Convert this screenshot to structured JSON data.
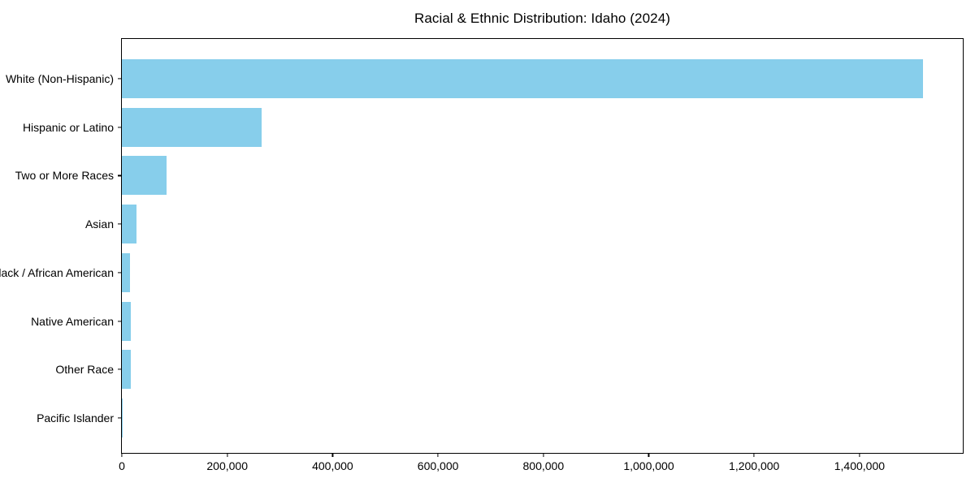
{
  "chart_data": {
    "type": "bar",
    "orientation": "horizontal",
    "title": "Racial & Ethnic Distribution: Idaho (2024)",
    "categories": [
      "White (Non-Hispanic)",
      "Hispanic or Latino",
      "Two or More Races",
      "Asian",
      "Black / African American",
      "Native American",
      "Other Race",
      "Pacific Islander"
    ],
    "values": [
      1520000,
      265000,
      85000,
      28000,
      16000,
      17000,
      17000,
      2000
    ],
    "bar_color": "#87CEEB",
    "xlabel": "",
    "ylabel": "",
    "xlim": [
      0,
      1596000
    ],
    "x_ticks": [
      0,
      200000,
      400000,
      600000,
      800000,
      1000000,
      1200000,
      1400000
    ],
    "x_tick_labels": [
      "0",
      "200,000",
      "400,000",
      "600,000",
      "800,000",
      "1,000,000",
      "1,200,000",
      "1,400,000"
    ],
    "grid": false,
    "legend": "none",
    "background_color": "#ffffff",
    "spine_color": "#000000"
  }
}
